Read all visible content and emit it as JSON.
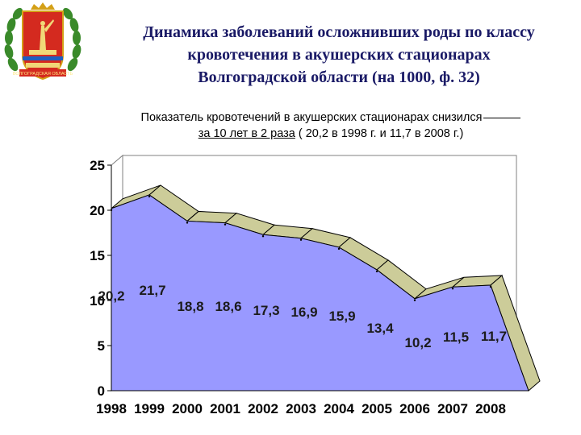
{
  "header": {
    "title_line1": "Динамика заболеваний осложнивших роды по классу",
    "title_line2": "кровотечения в акушерских стационарах",
    "title_line3": "Волгоградской области  (на 1000, ф. 32)"
  },
  "subtitle": {
    "line1": "Показатель кровотечений в акушерских стационарах  снизился",
    "line2_underlined": "за 10 лет в 2 раза",
    "line2_rest": " ( 20,2 в 1998 г. и 11,7 в 2008 г.)"
  },
  "emblem": {
    "icon": "volgograd-coat-of-arms-icon",
    "label": "ВОЛГОГРАДСКАЯ ОБЛАСТЬ"
  },
  "chart_data": {
    "type": "area",
    "style": "3d",
    "categories": [
      "1998",
      "1999",
      "2000",
      "2001",
      "2002",
      "2003",
      "2004",
      "2005",
      "2006",
      "2007",
      "2008"
    ],
    "values": [
      20.2,
      21.7,
      18.8,
      18.6,
      17.3,
      16.9,
      15.9,
      13.4,
      10.2,
      11.5,
      11.7
    ],
    "data_labels": [
      "20,2",
      "21,7",
      "18,8",
      "18,6",
      "17,3",
      "16,9",
      "15,9",
      "13,4",
      "10,2",
      "11,5",
      "11,7"
    ],
    "y_ticks": [
      "0",
      "5",
      "10",
      "15",
      "20",
      "25"
    ],
    "ylim": [
      0,
      25
    ],
    "grid": false,
    "colors": {
      "fill": "#9999ff",
      "top": "#cccc99",
      "wall": "#ffffff",
      "outline": "#000000"
    }
  }
}
